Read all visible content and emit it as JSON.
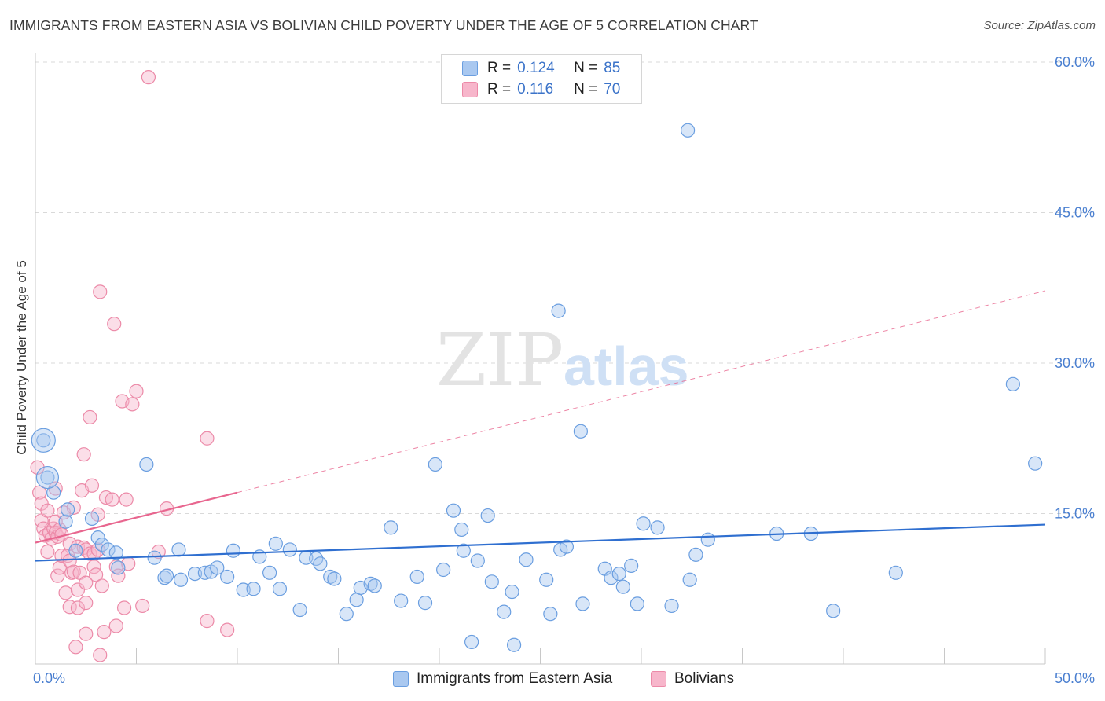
{
  "title": "IMMIGRANTS FROM EASTERN ASIA VS BOLIVIAN CHILD POVERTY UNDER THE AGE OF 5 CORRELATION CHART",
  "source": "Source: ZipAtlas.com",
  "watermark": {
    "zip": "ZIP",
    "atlas": "atlas"
  },
  "legend": {
    "r_label": "R =",
    "n_label": "N =",
    "rows": [
      {
        "r": "0.124",
        "n": "85"
      },
      {
        "r": "0.116",
        "n": "70"
      }
    ]
  },
  "bottom_legend": [
    "Immigrants from Eastern Asia",
    "Bolivians"
  ],
  "colors": {
    "blue_fill": "#a9c8f0",
    "blue_stroke": "#6a9ee0",
    "blue_line": "#2f6fd0",
    "pink_fill": "#f7b6cb",
    "pink_stroke": "#ec8aa8",
    "pink_line": "#e8668f",
    "tick_text": "#4a7fd0",
    "grid": "#d9d9d9"
  },
  "chart_data": {
    "type": "scatter",
    "title": "IMMIGRANTS FROM EASTERN ASIA VS BOLIVIAN CHILD POVERTY UNDER THE AGE OF 5 CORRELATION CHART",
    "xlabel": "",
    "ylabel": "Child Poverty Under the Age of 5",
    "xlim": [
      0,
      50
    ],
    "ylim": [
      0,
      60
    ],
    "x_tick_labels": [
      "0.0%",
      "50.0%"
    ],
    "y_ticks": [
      15,
      30,
      45,
      60
    ],
    "y_tick_labels": [
      "15.0%",
      "30.0%",
      "45.0%",
      "60.0%"
    ],
    "grid": "horizontal dashed",
    "series": [
      {
        "name": "Immigrants from Eastern Asia",
        "color": "blue",
        "trend": {
          "x": [
            0,
            50
          ],
          "y": [
            10.3,
            13.9
          ],
          "style": "solid"
        },
        "points": [
          [
            0.4,
            22.3
          ],
          [
            0.6,
            18.6
          ],
          [
            1.5,
            14.2
          ],
          [
            1.6,
            15.4
          ],
          [
            2.0,
            11.3
          ],
          [
            2.8,
            14.5
          ],
          [
            3.1,
            12.6
          ],
          [
            3.3,
            11.9
          ],
          [
            3.6,
            11.4
          ],
          [
            4.0,
            11.1
          ],
          [
            4.1,
            9.6
          ],
          [
            5.5,
            19.9
          ],
          [
            5.9,
            10.6
          ],
          [
            6.4,
            8.6
          ],
          [
            6.5,
            8.8
          ],
          [
            7.1,
            11.4
          ],
          [
            7.2,
            8.4
          ],
          [
            7.9,
            9.0
          ],
          [
            8.4,
            9.1
          ],
          [
            8.7,
            9.2
          ],
          [
            9.0,
            9.6
          ],
          [
            9.5,
            8.7
          ],
          [
            9.8,
            11.3
          ],
          [
            10.3,
            7.4
          ],
          [
            10.8,
            7.5
          ],
          [
            11.1,
            10.7
          ],
          [
            11.6,
            9.1
          ],
          [
            11.9,
            12.0
          ],
          [
            12.1,
            7.5
          ],
          [
            12.6,
            11.4
          ],
          [
            13.1,
            5.4
          ],
          [
            13.4,
            10.6
          ],
          [
            13.9,
            10.5
          ],
          [
            14.1,
            10.0
          ],
          [
            14.6,
            8.7
          ],
          [
            14.8,
            8.5
          ],
          [
            15.4,
            5.0
          ],
          [
            15.9,
            6.4
          ],
          [
            16.1,
            7.6
          ],
          [
            16.6,
            8.0
          ],
          [
            16.8,
            7.8
          ],
          [
            17.6,
            13.6
          ],
          [
            18.1,
            6.3
          ],
          [
            18.9,
            8.7
          ],
          [
            19.3,
            6.1
          ],
          [
            19.8,
            19.9
          ],
          [
            20.2,
            9.4
          ],
          [
            20.7,
            15.3
          ],
          [
            21.1,
            13.4
          ],
          [
            21.2,
            11.3
          ],
          [
            21.6,
            2.2
          ],
          [
            21.9,
            10.3
          ],
          [
            22.4,
            14.8
          ],
          [
            22.6,
            8.2
          ],
          [
            23.2,
            5.2
          ],
          [
            23.6,
            7.2
          ],
          [
            23.7,
            1.9
          ],
          [
            24.3,
            10.4
          ],
          [
            25.3,
            8.4
          ],
          [
            25.5,
            5.0
          ],
          [
            26.0,
            11.4
          ],
          [
            26.3,
            11.7
          ],
          [
            25.9,
            35.2
          ],
          [
            27.0,
            23.2
          ],
          [
            27.1,
            6.0
          ],
          [
            28.2,
            9.5
          ],
          [
            28.5,
            8.6
          ],
          [
            28.9,
            9.0
          ],
          [
            29.1,
            7.7
          ],
          [
            29.5,
            9.8
          ],
          [
            29.8,
            6.0
          ],
          [
            30.1,
            14.0
          ],
          [
            30.8,
            13.6
          ],
          [
            31.5,
            5.8
          ],
          [
            32.3,
            53.2
          ],
          [
            32.4,
            8.4
          ],
          [
            32.7,
            10.9
          ],
          [
            33.3,
            12.4
          ],
          [
            36.7,
            13.0
          ],
          [
            38.4,
            13.0
          ],
          [
            39.5,
            5.3
          ],
          [
            42.6,
            9.1
          ],
          [
            48.4,
            27.9
          ],
          [
            49.5,
            20.0
          ],
          [
            0.9,
            17.1
          ]
        ]
      },
      {
        "name": "Bolivians",
        "color": "pink",
        "trend": {
          "x": [
            0,
            10
          ],
          "y": [
            12.1,
            17.1
          ],
          "x_dashed": [
            10,
            50
          ],
          "y_dashed": [
            17.1,
            37.2
          ]
        },
        "points": [
          [
            0.1,
            19.6
          ],
          [
            0.2,
            17.1
          ],
          [
            0.3,
            16.0
          ],
          [
            0.3,
            14.3
          ],
          [
            0.4,
            13.5
          ],
          [
            0.5,
            12.8
          ],
          [
            0.6,
            15.3
          ],
          [
            0.6,
            11.2
          ],
          [
            0.7,
            13.1
          ],
          [
            0.8,
            12.5
          ],
          [
            0.9,
            13.5
          ],
          [
            1.0,
            17.5
          ],
          [
            1.0,
            14.2
          ],
          [
            1.0,
            13.1
          ],
          [
            1.1,
            8.8
          ],
          [
            1.1,
            12.7
          ],
          [
            1.2,
            9.6
          ],
          [
            1.2,
            13.4
          ],
          [
            1.3,
            12.9
          ],
          [
            1.3,
            10.8
          ],
          [
            1.4,
            15.1
          ],
          [
            1.5,
            7.1
          ],
          [
            1.6,
            10.8
          ],
          [
            1.7,
            10.3
          ],
          [
            1.7,
            12.0
          ],
          [
            1.7,
            5.7
          ],
          [
            1.8,
            9.1
          ],
          [
            1.9,
            9.2
          ],
          [
            1.9,
            15.6
          ],
          [
            2.0,
            1.7
          ],
          [
            2.1,
            11.7
          ],
          [
            2.1,
            7.4
          ],
          [
            2.1,
            5.6
          ],
          [
            2.2,
            9.1
          ],
          [
            2.3,
            17.3
          ],
          [
            2.4,
            11.6
          ],
          [
            2.4,
            20.9
          ],
          [
            2.5,
            3.0
          ],
          [
            2.5,
            8.1
          ],
          [
            2.5,
            6.1
          ],
          [
            2.5,
            11.4
          ],
          [
            2.7,
            24.6
          ],
          [
            2.7,
            11.0
          ],
          [
            2.8,
            17.8
          ],
          [
            2.9,
            11.0
          ],
          [
            2.9,
            9.7
          ],
          [
            3.0,
            8.9
          ],
          [
            3.1,
            14.9
          ],
          [
            3.1,
            11.4
          ],
          [
            3.2,
            0.9
          ],
          [
            3.2,
            37.1
          ],
          [
            3.3,
            7.8
          ],
          [
            3.4,
            3.2
          ],
          [
            3.5,
            16.6
          ],
          [
            3.8,
            16.4
          ],
          [
            3.9,
            33.9
          ],
          [
            4.0,
            3.8
          ],
          [
            4.0,
            9.7
          ],
          [
            4.1,
            8.8
          ],
          [
            4.3,
            26.2
          ],
          [
            4.4,
            5.6
          ],
          [
            4.5,
            16.4
          ],
          [
            4.6,
            10.0
          ],
          [
            4.8,
            25.9
          ],
          [
            5.0,
            27.2
          ],
          [
            5.3,
            5.8
          ],
          [
            5.6,
            58.5
          ],
          [
            6.1,
            11.2
          ],
          [
            6.5,
            15.5
          ],
          [
            8.5,
            22.5
          ]
        ],
        "extra_points": [
          [
            8.5,
            4.3
          ],
          [
            9.5,
            3.4
          ]
        ]
      }
    ]
  }
}
